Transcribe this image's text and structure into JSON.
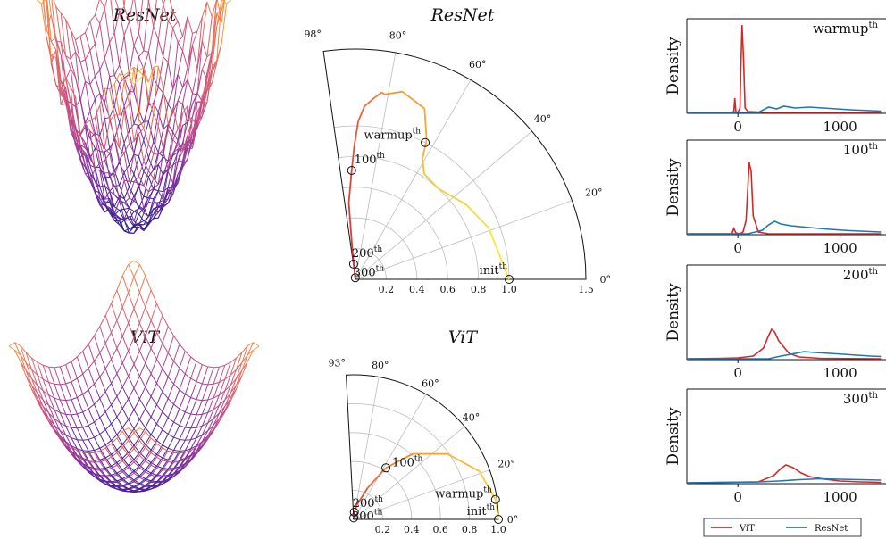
{
  "chart_data": [
    {
      "type": "surface",
      "title": "ResNet",
      "subtitle": "",
      "kind": "rough",
      "colormap": [
        "#2b1a8c",
        "#7a2ea0",
        "#c14a8a",
        "#e8705c",
        "#f5a23a",
        "#f7e53c"
      ]
    },
    {
      "type": "surface",
      "title": "ViT",
      "kind": "smooth",
      "colormap": [
        "#2b1a8c",
        "#7a2ea0",
        "#c14a8a",
        "#e8705c",
        "#f5a23a"
      ]
    },
    {
      "type": "polar-trajectory",
      "title": "ResNet",
      "r_max": 1.5,
      "theta_max_deg": 98,
      "r_ticks": [
        0.2,
        0.4,
        0.6,
        0.8,
        1.0,
        1.5
      ],
      "r_tick_labels": [
        "0.2",
        "0.4",
        "0.6",
        "0.8",
        "1.0",
        "1.5"
      ],
      "r_grid": [
        0.2,
        0.4,
        0.6,
        0.8,
        1.0
      ],
      "theta_ticks_deg": [
        0,
        20,
        40,
        60,
        80,
        98
      ],
      "theta_tick_labels": [
        "0°",
        "20°",
        "40°",
        "60°",
        "80°",
        "98°"
      ],
      "path": [
        {
          "r": 1.0,
          "theta": 0
        },
        {
          "r": 0.93,
          "theta": 21
        },
        {
          "r": 0.87,
          "theta": 34
        },
        {
          "r": 0.8,
          "theta": 48
        },
        {
          "r": 0.82,
          "theta": 57
        },
        {
          "r": 0.9,
          "theta": 61
        },
        {
          "r": 1.02,
          "theta": 63
        },
        {
          "r": 1.2,
          "theta": 68
        },
        {
          "r": 1.26,
          "theta": 76
        },
        {
          "r": 1.22,
          "theta": 81
        },
        {
          "r": 1.23,
          "theta": 82
        },
        {
          "r": 1.19,
          "theta": 84
        },
        {
          "r": 1.13,
          "theta": 87
        },
        {
          "r": 1.03,
          "theta": 89
        },
        {
          "r": 0.87,
          "theta": 90.5
        },
        {
          "r": 0.71,
          "theta": 92
        },
        {
          "r": 0.5,
          "theta": 95
        },
        {
          "r": 0.2,
          "theta": 96
        },
        {
          "r": 0.04,
          "theta": 97
        },
        {
          "r": 0.01,
          "theta": 97
        }
      ],
      "markers": [
        {
          "label": "init",
          "r": 1.0,
          "theta": 0
        },
        {
          "label": "warmup",
          "r": 1.0,
          "theta": 63
        },
        {
          "label": "100",
          "r": 0.71,
          "theta": 92
        },
        {
          "label": "200",
          "r": 0.1,
          "theta": 97
        },
        {
          "label": "300",
          "r": 0.01,
          "theta": 97
        }
      ],
      "superscript": "th"
    },
    {
      "type": "polar-trajectory",
      "title": "ViT",
      "r_max": 1.0,
      "theta_max_deg": 93,
      "r_ticks": [
        0.2,
        0.4,
        0.6,
        0.8,
        1.0
      ],
      "r_tick_labels": [
        "0.2",
        "0.4",
        "0.6",
        "0.8",
        "1.0"
      ],
      "r_grid": [
        0.2,
        0.4,
        0.6,
        0.8
      ],
      "theta_ticks_deg": [
        0,
        20,
        60,
        80,
        93
      ],
      "theta_tick_labels": [
        "0°",
        "20°",
        "60°",
        "80°",
        "93°"
      ],
      "extra_theta_tick": {
        "deg": 40,
        "label": "40°"
      },
      "path": [
        {
          "r": 1.0,
          "theta": 0
        },
        {
          "r": 0.99,
          "theta": 8
        },
        {
          "r": 0.93,
          "theta": 21
        },
        {
          "r": 0.79,
          "theta": 35
        },
        {
          "r": 0.61,
          "theta": 48
        },
        {
          "r": 0.42,
          "theta": 58
        },
        {
          "r": 0.24,
          "theta": 66
        },
        {
          "r": 0.1,
          "theta": 78
        },
        {
          "r": 0.05,
          "theta": 85
        },
        {
          "r": 0.01,
          "theta": 90
        }
      ],
      "markers": [
        {
          "label": "init",
          "r": 1.0,
          "theta": 0
        },
        {
          "label": "warmup",
          "r": 0.99,
          "theta": 8
        },
        {
          "label": "100",
          "r": 0.42,
          "theta": 58
        },
        {
          "label": "200",
          "r": 0.05,
          "theta": 85
        },
        {
          "label": "300",
          "r": 0.01,
          "theta": 90
        }
      ],
      "superscript": "th"
    },
    {
      "type": "density",
      "ylabel": "Density",
      "x_ticks": [
        0,
        1000
      ],
      "panels": [
        {
          "label": "warmup",
          "series": [
            {
              "name": "ViT",
              "points": [
                [
                  -500,
                  0
                ],
                [
                  -60,
                  0
                ],
                [
                  -40,
                  0.01
                ],
                [
                  -30,
                  0.16
                ],
                [
                  -20,
                  0.01
                ],
                [
                  0,
                  0
                ],
                [
                  20,
                  0.05
                ],
                [
                  30,
                  0.55
                ],
                [
                  40,
                  0.98
                ],
                [
                  55,
                  0.6
                ],
                [
                  70,
                  0.05
                ],
                [
                  100,
                  0.01
                ],
                [
                  300,
                  0
                ],
                [
                  1400,
                  0
                ]
              ]
            },
            {
              "name": "ResNet",
              "points": [
                [
                  -500,
                  0
                ],
                [
                  200,
                  0
                ],
                [
                  300,
                  0.06
                ],
                [
                  380,
                  0.04
                ],
                [
                  450,
                  0.07
                ],
                [
                  560,
                  0.05
                ],
                [
                  700,
                  0.06
                ],
                [
                  900,
                  0.045
                ],
                [
                  1100,
                  0.03
                ],
                [
                  1300,
                  0.02
                ],
                [
                  1400,
                  0.015
                ]
              ]
            }
          ]
        },
        {
          "label": "100",
          "series": [
            {
              "name": "ViT",
              "points": [
                [
                  -500,
                  0
                ],
                [
                  -60,
                  0
                ],
                [
                  -40,
                  0.06
                ],
                [
                  -20,
                  0.01
                ],
                [
                  20,
                  0
                ],
                [
                  50,
                  0.02
                ],
                [
                  80,
                  0.15
                ],
                [
                  110,
                  0.8
                ],
                [
                  130,
                  0.7
                ],
                [
                  150,
                  0.2
                ],
                [
                  200,
                  0.02
                ],
                [
                  300,
                  0
                ],
                [
                  1400,
                  0
                ]
              ]
            },
            {
              "name": "ResNet",
              "points": [
                [
                  -500,
                  0
                ],
                [
                  100,
                  0
                ],
                [
                  240,
                  0.04
                ],
                [
                  300,
                  0.1
                ],
                [
                  360,
                  0.14
                ],
                [
                  420,
                  0.11
                ],
                [
                  520,
                  0.09
                ],
                [
                  700,
                  0.07
                ],
                [
                  900,
                  0.05
                ],
                [
                  1100,
                  0.035
                ],
                [
                  1300,
                  0.025
                ],
                [
                  1400,
                  0.02
                ]
              ]
            }
          ]
        },
        {
          "label": "200",
          "series": [
            {
              "name": "ViT",
              "points": [
                [
                  -500,
                  0
                ],
                [
                  -150,
                  0.005
                ],
                [
                  0,
                  0.01
                ],
                [
                  150,
                  0.03
                ],
                [
                  250,
                  0.12
                ],
                [
                  300,
                  0.26
                ],
                [
                  330,
                  0.33
                ],
                [
                  360,
                  0.3
                ],
                [
                  400,
                  0.2
                ],
                [
                  500,
                  0.06
                ],
                [
                  600,
                  0.02
                ],
                [
                  800,
                  0.005
                ],
                [
                  1400,
                  0
                ]
              ]
            },
            {
              "name": "ResNet",
              "points": [
                [
                  -500,
                  0
                ],
                [
                  300,
                  0
                ],
                [
                  420,
                  0.03
                ],
                [
                  520,
                  0.05
                ],
                [
                  650,
                  0.08
                ],
                [
                  750,
                  0.07
                ],
                [
                  900,
                  0.06
                ],
                [
                  1100,
                  0.045
                ],
                [
                  1300,
                  0.03
                ],
                [
                  1400,
                  0.025
                ]
              ]
            }
          ]
        },
        {
          "label": "300",
          "series": [
            {
              "name": "ViT",
              "points": [
                [
                  -500,
                  0
                ],
                [
                  200,
                  0.01
                ],
                [
                  350,
                  0.08
                ],
                [
                  420,
                  0.16
                ],
                [
                  470,
                  0.2
                ],
                [
                  540,
                  0.17
                ],
                [
                  620,
                  0.11
                ],
                [
                  700,
                  0.07
                ],
                [
                  850,
                  0.04
                ],
                [
                  1000,
                  0.02
                ],
                [
                  1200,
                  0.01
                ],
                [
                  1400,
                  0.005
                ]
              ]
            },
            {
              "name": "ResNet",
              "points": [
                [
                  -500,
                  0
                ],
                [
                  200,
                  0.01
                ],
                [
                  400,
                  0.02
                ],
                [
                  600,
                  0.035
                ],
                [
                  800,
                  0.045
                ],
                [
                  1000,
                  0.04
                ],
                [
                  1200,
                  0.035
                ],
                [
                  1400,
                  0.03
                ]
              ]
            }
          ]
        }
      ],
      "superscript": "th",
      "legend": [
        "ViT",
        "ResNet"
      ],
      "colors": {
        "ViT": "#d62728",
        "ResNet": "#1f77b4"
      }
    }
  ]
}
